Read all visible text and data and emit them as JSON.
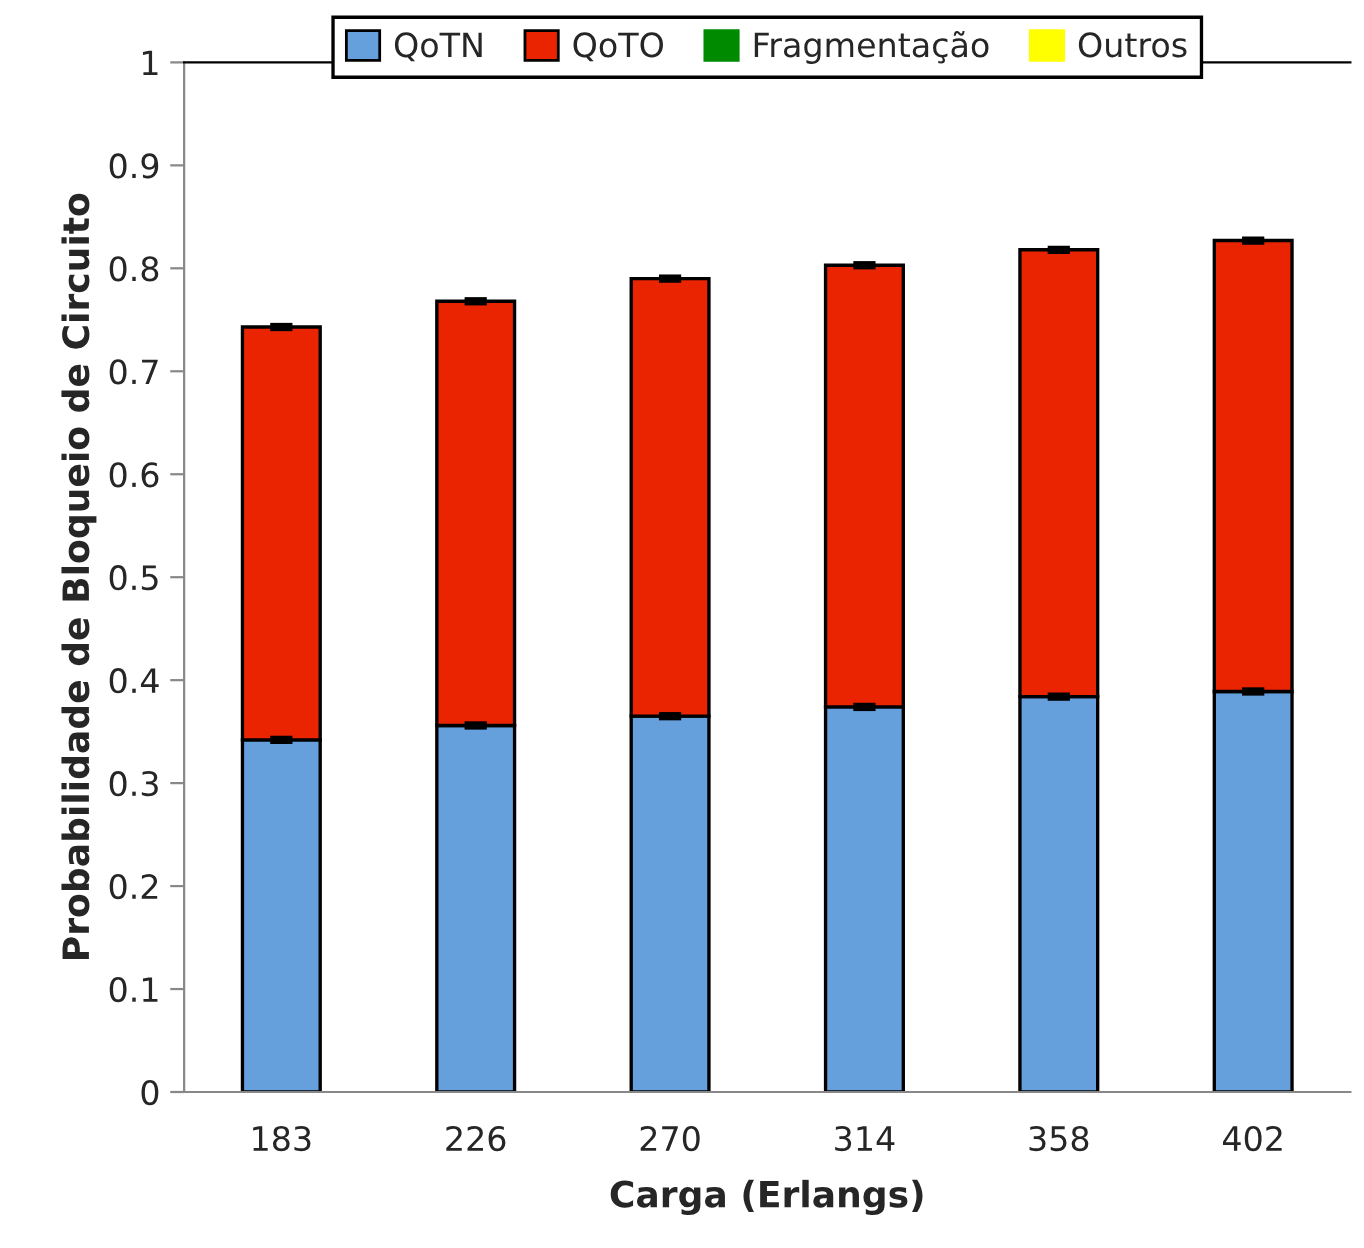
{
  "chart_data": {
    "type": "bar",
    "stacked": true,
    "xlabel": "Carga (Erlangs)",
    "ylabel": "Probabilidade de Bloqueio de Circuito",
    "categories": [
      "183",
      "226",
      "270",
      "314",
      "358",
      "402"
    ],
    "series": [
      {
        "name": "QoTN",
        "color": "#659fdc",
        "values": [
          0.342,
          0.356,
          0.365,
          0.374,
          0.384,
          0.389
        ],
        "errors": [
          0.002,
          0.002,
          0.002,
          0.002,
          0.002,
          0.002
        ]
      },
      {
        "name": "QoTO",
        "color": "#ea2300",
        "values": [
          0.401,
          0.412,
          0.425,
          0.429,
          0.434,
          0.438
        ],
        "errors": [
          0.002,
          0.002,
          0.002,
          0.002,
          0.002,
          0.002
        ]
      },
      {
        "name": "Fragmentação",
        "color": "#008a00",
        "values": [
          0,
          0,
          0,
          0,
          0,
          0
        ]
      },
      {
        "name": "Outros",
        "color": "#ffff00",
        "values": [
          0,
          0,
          0,
          0,
          0,
          0
        ]
      }
    ],
    "ylim": [
      0,
      1
    ],
    "yticks": [
      0,
      0.1,
      0.2,
      0.3,
      0.4,
      0.5,
      0.6,
      0.7,
      0.8,
      0.9,
      1
    ],
    "grid": false,
    "legend": "top"
  }
}
